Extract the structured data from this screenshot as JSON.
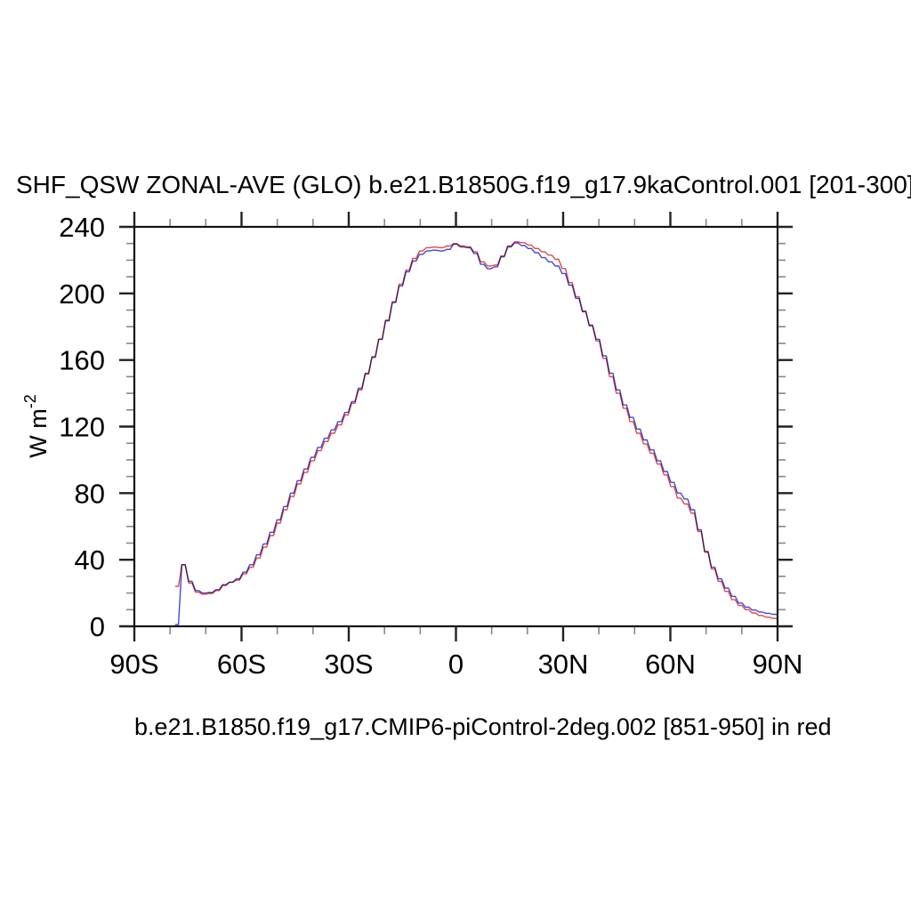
{
  "title": "SHF_QSW ZONAL-AVE (GLO) b.e21.B1850G.f19_g17.9kaControl.001 [201-300]",
  "subtitle": "b.e21.B1850.f19_g17.CMIP6-piControl-2deg.002 [851-950] in red",
  "chart_data": {
    "type": "line",
    "title": "SHF_QSW ZONAL-AVE (GLO) b.e21.B1850G.f19_g17.9kaControl.001 [201-300]",
    "subtitle": "b.e21.B1850.f19_g17.CMIP6-piControl-2deg.002 [851-950] in red",
    "ylabel_base": "W m",
    "ylabel_sup": "-2",
    "xlim": [
      -90,
      90
    ],
    "ylim": [
      0,
      240
    ],
    "grid": false,
    "legend_position": "none",
    "x_major": {
      "values": [
        -90,
        -60,
        -30,
        0,
        30,
        60,
        90
      ],
      "labels": [
        "90S",
        "60S",
        "30S",
        "0",
        "30N",
        "60N",
        "90N"
      ]
    },
    "y_major": {
      "values": [
        0,
        40,
        80,
        120,
        160,
        200,
        240
      ],
      "labels": [
        "0",
        "40",
        "80",
        "120",
        "160",
        "200",
        "240"
      ]
    },
    "x_minor_step": 10,
    "y_minor_step": 10,
    "x": [
      -78.6,
      -76.7,
      -74.8,
      -72.9,
      -71.0,
      -69.1,
      -67.2,
      -65.3,
      -63.4,
      -61.5,
      -59.6,
      -57.7,
      -55.8,
      -53.9,
      -52.0,
      -50.1,
      -48.2,
      -46.3,
      -44.4,
      -42.5,
      -40.6,
      -38.7,
      -36.8,
      -34.9,
      -33.0,
      -31.1,
      -29.2,
      -27.3,
      -25.4,
      -23.5,
      -21.6,
      -19.7,
      -17.8,
      -15.9,
      -14.0,
      -12.1,
      -10.2,
      -8.3,
      -6.4,
      -4.5,
      -2.6,
      -0.7,
      1.2,
      3.1,
      5.0,
      6.9,
      8.8,
      10.7,
      12.6,
      14.5,
      16.4,
      18.3,
      20.2,
      22.1,
      24.0,
      25.9,
      27.8,
      29.7,
      31.6,
      33.5,
      35.4,
      37.3,
      39.2,
      41.1,
      43.0,
      44.9,
      46.8,
      48.7,
      50.6,
      52.5,
      54.4,
      56.3,
      58.2,
      60.1,
      62.0,
      63.9,
      65.8,
      67.7,
      69.6,
      71.5,
      73.4,
      75.3,
      77.2,
      79.1,
      81.0,
      82.9,
      84.8,
      86.7,
      88.6,
      90.0
    ],
    "series": [
      {
        "name": "b.e21.B1850G.f19_g17.9kaControl.001 [201-300]",
        "color": "#4747cf",
        "values": [
          1,
          37,
          27,
          21.5,
          20,
          20.3,
          22,
          25,
          26.5,
          28.5,
          32.5,
          37,
          43,
          49.5,
          56.5,
          64,
          72,
          80,
          87.5,
          94.5,
          101.5,
          107.5,
          113,
          118,
          123,
          128.5,
          135,
          143,
          152,
          162,
          172.5,
          183.5,
          194.5,
          204.5,
          213,
          219.5,
          223.5,
          225.5,
          226,
          225.5,
          226.5,
          229.5,
          228,
          227.5,
          224,
          217.5,
          214.8,
          216,
          222,
          228,
          230.3,
          228.8,
          227,
          224.5,
          221.5,
          219,
          216.5,
          212,
          205,
          197,
          189,
          181,
          172.5,
          162.5,
          152,
          142,
          133,
          125.5,
          118.5,
          112,
          106,
          99.5,
          93,
          86.5,
          80,
          76.5,
          70,
          58,
          45,
          35.5,
          28.5,
          23,
          18,
          14,
          11.5,
          9.8,
          8.6,
          7.8,
          7.2,
          7
        ]
      },
      {
        "name": "b.e21.B1850.f19_g17.CMIP6-piControl-2deg.002 [851-950]",
        "color": "#dd4a4a",
        "values": [
          24,
          37,
          26,
          20.5,
          19.3,
          19.8,
          21.5,
          24.5,
          26.5,
          27.8,
          31.5,
          35.5,
          41,
          47.5,
          54.5,
          62,
          70,
          78,
          85.5,
          92.5,
          99.5,
          105.5,
          111,
          116,
          121,
          127,
          134,
          142,
          151.5,
          161.5,
          172.5,
          184,
          195,
          205.5,
          214,
          221,
          225.5,
          227.5,
          227.8,
          227.5,
          228.5,
          230,
          228.5,
          228,
          225,
          219,
          216.5,
          217,
          222.5,
          228.5,
          231,
          230.5,
          229,
          227,
          225,
          223,
          220.5,
          215,
          206.5,
          198,
          189.5,
          180.5,
          171.5,
          161,
          150,
          140,
          131,
          123,
          116,
          109.5,
          104,
          97.5,
          91,
          84,
          77,
          73.5,
          68,
          57,
          44.5,
          34.5,
          27,
          21,
          16,
          12.5,
          10,
          8,
          6.5,
          5.5,
          4.8,
          4.5
        ]
      }
    ],
    "frame_color": "#111111",
    "major_tick_color": "#222222",
    "minor_tick_color": "#888888"
  }
}
